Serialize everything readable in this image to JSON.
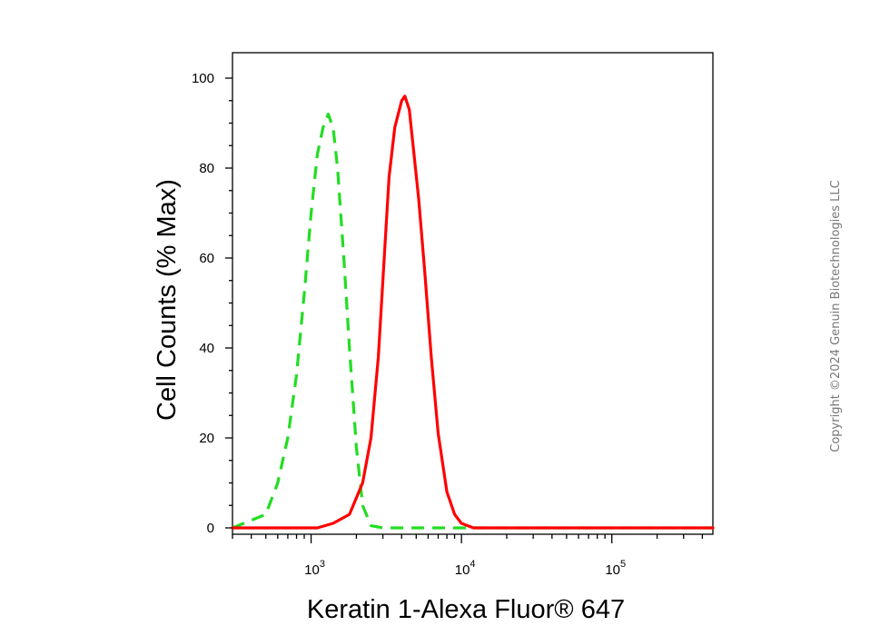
{
  "chart_data": {
    "type": "line",
    "x_scale": "log",
    "xlim": [
      300,
      470000
    ],
    "ylim": [
      0,
      100
    ],
    "xlabel": "Keratin 1-Alexa Fluor® 647",
    "ylabel": "Cell Counts (% Max)",
    "y_ticks": [
      0,
      20,
      40,
      60,
      80,
      100
    ],
    "y_tick_labels": [
      "0",
      "20",
      "40",
      "60",
      "80",
      "100"
    ],
    "x_ticks": [
      {
        "value": 1000,
        "base": "10",
        "exp": "3"
      },
      {
        "value": 10000,
        "base": "10",
        "exp": "4"
      },
      {
        "value": 100000,
        "base": "10",
        "exp": "5"
      }
    ],
    "grid": false,
    "series": [
      {
        "color": "#22dd22",
        "style": "dashed",
        "points": [
          [
            300,
            0
          ],
          [
            500,
            3
          ],
          [
            600,
            10
          ],
          [
            700,
            20
          ],
          [
            800,
            34
          ],
          [
            900,
            52
          ],
          [
            1000,
            70
          ],
          [
            1100,
            83
          ],
          [
            1200,
            89
          ],
          [
            1300,
            92
          ],
          [
            1400,
            89
          ],
          [
            1500,
            80
          ],
          [
            1650,
            60
          ],
          [
            1800,
            40
          ],
          [
            2000,
            18
          ],
          [
            2200,
            5
          ],
          [
            2500,
            0.5
          ],
          [
            3000,
            0
          ],
          [
            470000,
            0
          ]
        ]
      },
      {
        "color": "#ff0000",
        "style": "solid",
        "points": [
          [
            300,
            0
          ],
          [
            1100,
            0
          ],
          [
            1400,
            1
          ],
          [
            1800,
            3
          ],
          [
            2200,
            10
          ],
          [
            2500,
            20
          ],
          [
            2800,
            38
          ],
          [
            3000,
            55
          ],
          [
            3300,
            78
          ],
          [
            3600,
            89
          ],
          [
            4000,
            95
          ],
          [
            4200,
            96
          ],
          [
            4500,
            93
          ],
          [
            4800,
            84
          ],
          [
            5200,
            73
          ],
          [
            5700,
            57
          ],
          [
            6300,
            38
          ],
          [
            7000,
            21
          ],
          [
            8000,
            8
          ],
          [
            9000,
            3
          ],
          [
            10000,
            1
          ],
          [
            12000,
            0
          ],
          [
            470000,
            0
          ]
        ]
      }
    ]
  },
  "watermark": "Copyright ©2024 Genuin Biotechnologies LLC"
}
